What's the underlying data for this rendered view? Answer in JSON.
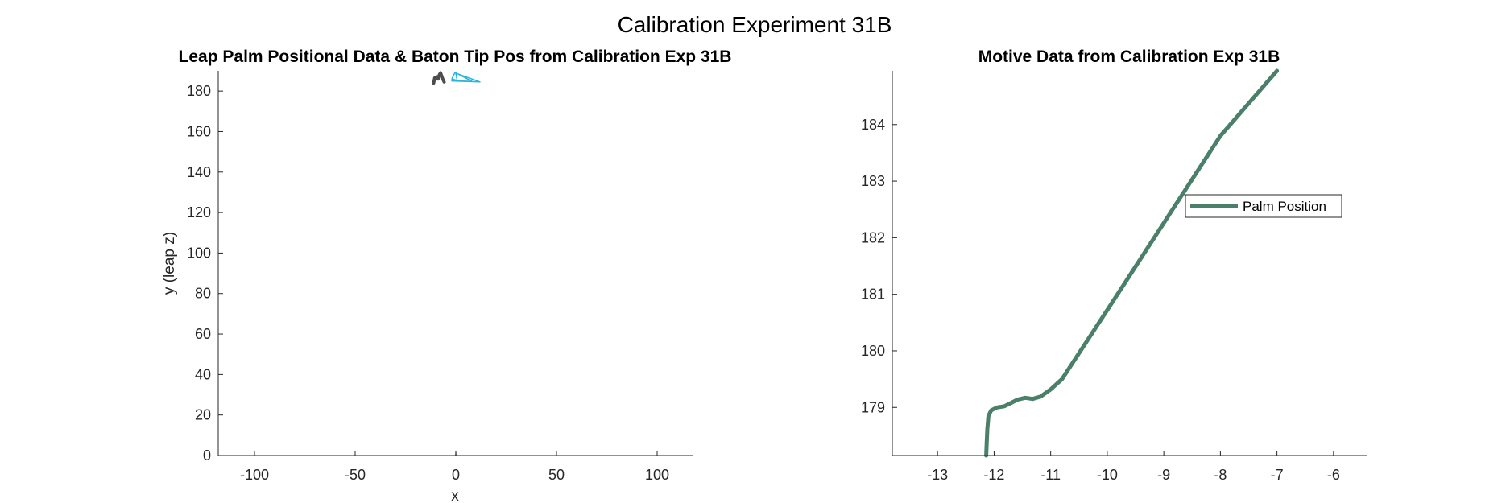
{
  "figure": {
    "title": "Calibration Experiment 31B"
  },
  "chart_data": [
    {
      "type": "line",
      "title": "Leap Palm Positional Data & Baton Tip Pos from Calibration Exp 31B",
      "xlabel": "x",
      "ylabel": "y (leap z)",
      "xlim": [
        -118,
        118
      ],
      "ylim": [
        0,
        190
      ],
      "xticks": [
        -100,
        -50,
        0,
        50,
        100
      ],
      "xtick_labels": [
        "-100",
        "-50",
        "0",
        "50",
        "100"
      ],
      "yticks": [
        0,
        20,
        40,
        60,
        80,
        100,
        120,
        140,
        160,
        180
      ],
      "ytick_labels": [
        "0",
        "20",
        "40",
        "60",
        "80",
        "100",
        "120",
        "140",
        "160",
        "180"
      ],
      "grid": false,
      "series": [
        {
          "color": "#4d4d4d",
          "width": 4,
          "x": [
            -11,
            -10.5,
            -9.5,
            -8.8,
            -8.2,
            -7.6,
            -6.5,
            -5.8
          ],
          "y": [
            184,
            186.5,
            187,
            186,
            188,
            189,
            186,
            184.5
          ]
        },
        {
          "color": "#2bb3d9",
          "width": 1.5,
          "x": [
            -2,
            12,
            -0.5,
            -2,
            1.5,
            8,
            0,
            0.5
          ],
          "y": [
            185,
            184.5,
            189,
            186,
            185,
            184.8,
            189,
            186
          ]
        },
        {
          "color": "#8fb3e0",
          "width": 1.2,
          "x": [
            -0.2,
            0,
            0.3
          ],
          "y": [
            0,
            1.8,
            0
          ]
        }
      ]
    },
    {
      "type": "line",
      "title": "Motive Data from Calibration Exp 31B",
      "xlabel": "",
      "ylabel": "",
      "xlim": [
        -13.8,
        -5.4
      ],
      "ylim": [
        178.15,
        184.95
      ],
      "xticks": [
        -13,
        -12,
        -11,
        -10,
        -9,
        -8,
        -7,
        -6
      ],
      "xtick_labels": [
        "-13",
        "-12",
        "-11",
        "-10",
        "-9",
        "-8",
        "-7",
        "-6"
      ],
      "yticks": [
        179,
        180,
        181,
        182,
        183,
        184
      ],
      "ytick_labels": [
        "179",
        "180",
        "181",
        "182",
        "183",
        "184"
      ],
      "grid": false,
      "legend": {
        "position": "east",
        "entries": [
          "Palm Position"
        ]
      },
      "series": [
        {
          "name": "Palm Position",
          "color": "#4a7f69",
          "width": 5,
          "x": [
            -12.14,
            -12.13,
            -12.12,
            -12.1,
            -12.05,
            -11.95,
            -11.82,
            -11.7,
            -11.58,
            -11.45,
            -11.32,
            -11.18,
            -11.0,
            -10.8,
            -10.0,
            -9.0,
            -8.0,
            -7.0
          ],
          "y": [
            178.15,
            178.4,
            178.62,
            178.85,
            178.95,
            179.0,
            179.02,
            179.08,
            179.14,
            179.17,
            179.15,
            179.19,
            179.32,
            179.5,
            180.72,
            182.26,
            183.8,
            184.95
          ]
        }
      ]
    }
  ]
}
